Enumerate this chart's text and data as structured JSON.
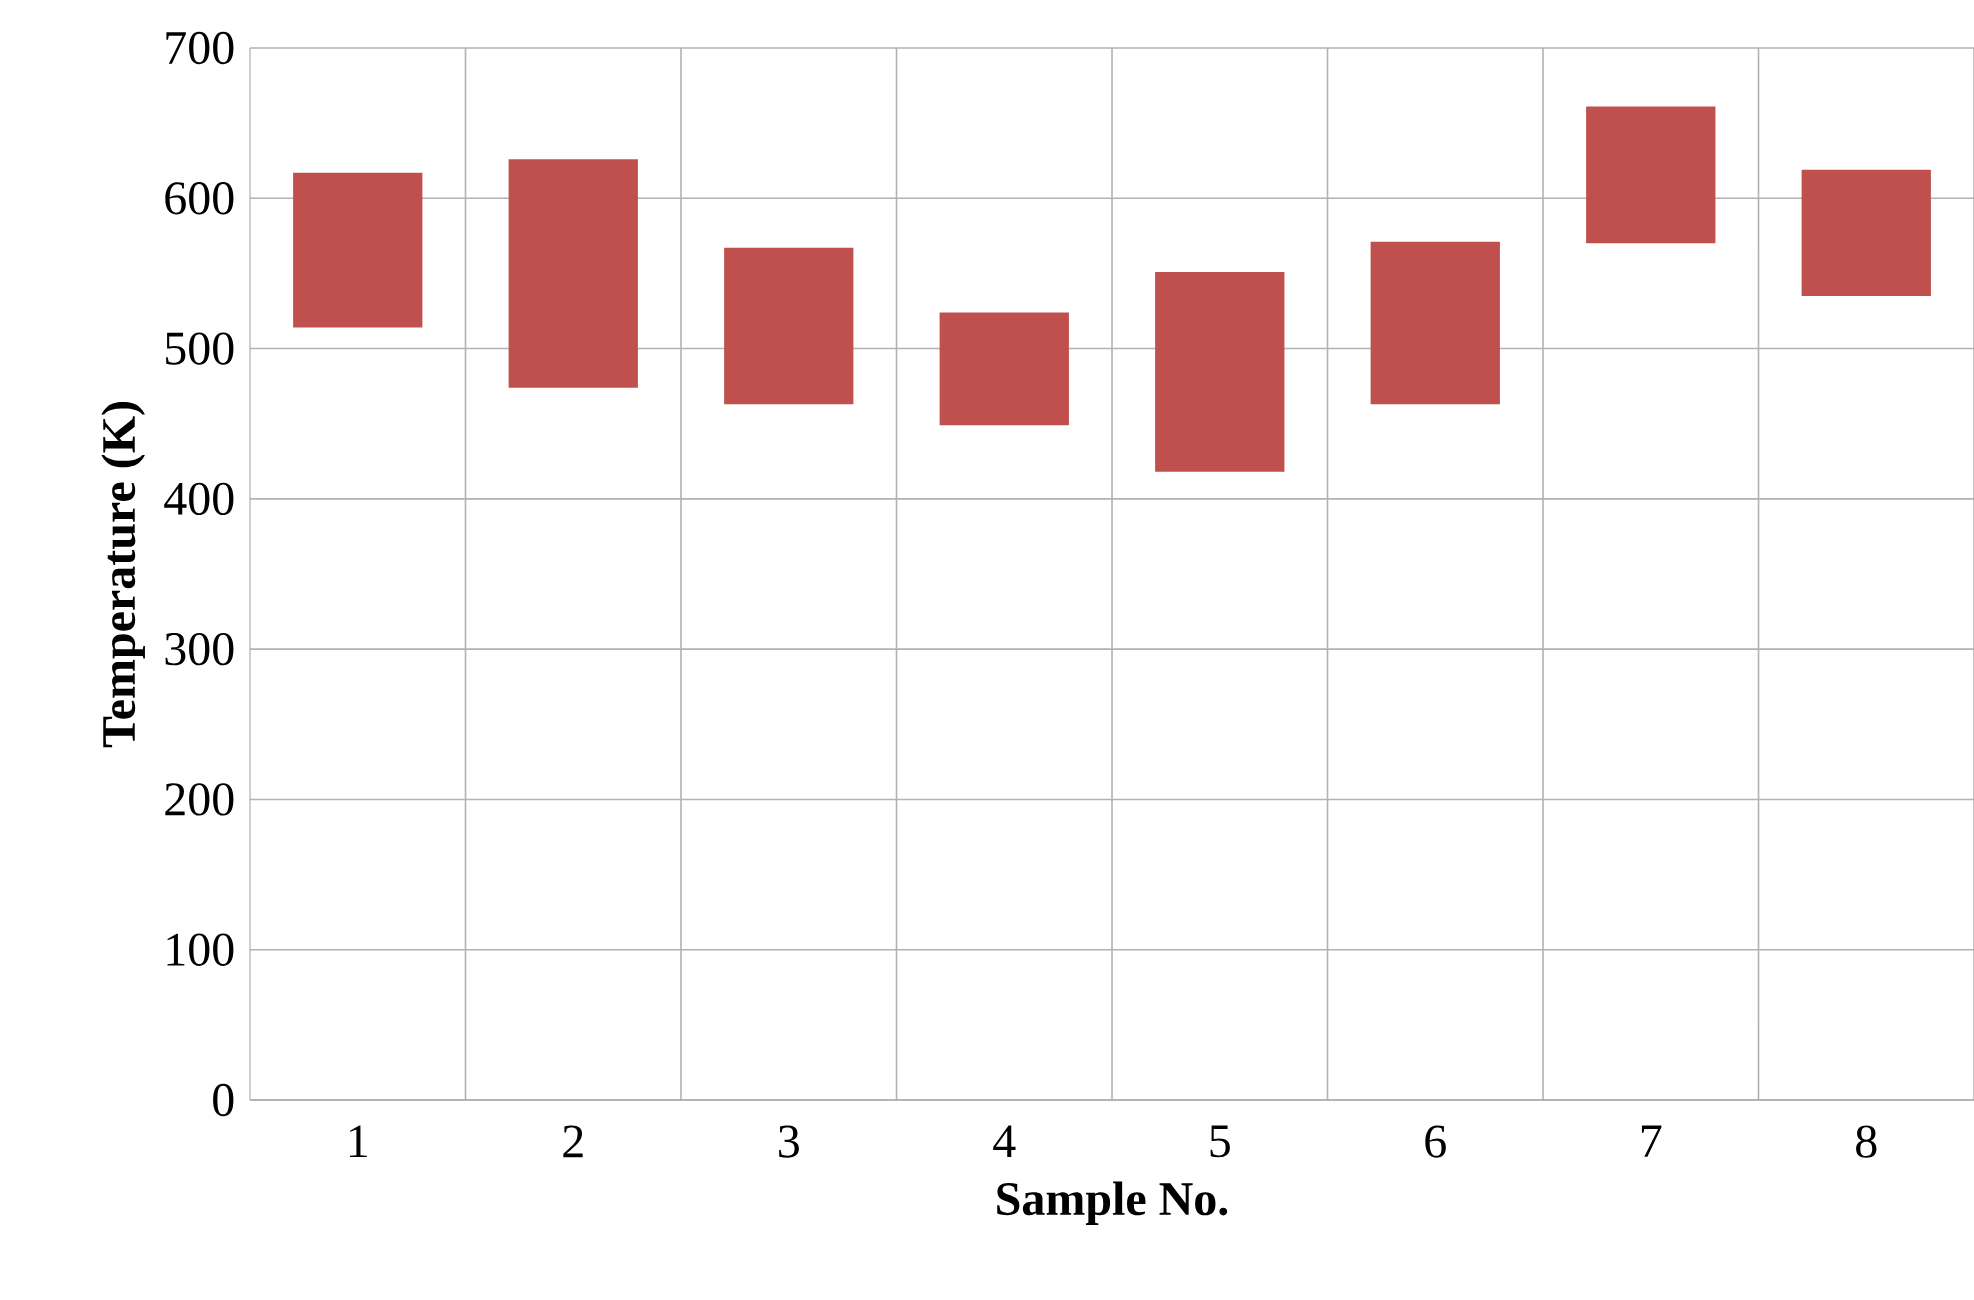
{
  "chart_data": {
    "type": "bar",
    "xlabel": "Sample No.",
    "ylabel": "Temperature (K)",
    "categories": [
      "1",
      "2",
      "3",
      "4",
      "5",
      "6",
      "7",
      "8"
    ],
    "base": [
      514,
      474,
      463,
      449,
      418,
      463,
      570,
      535
    ],
    "values": [
      103,
      152,
      104,
      75,
      133,
      108,
      91,
      84
    ],
    "color": "#c0504d",
    "ylim": [
      0,
      700
    ],
    "yticks": [
      0,
      100,
      200,
      300,
      400,
      500,
      600,
      700
    ],
    "grid": true
  }
}
